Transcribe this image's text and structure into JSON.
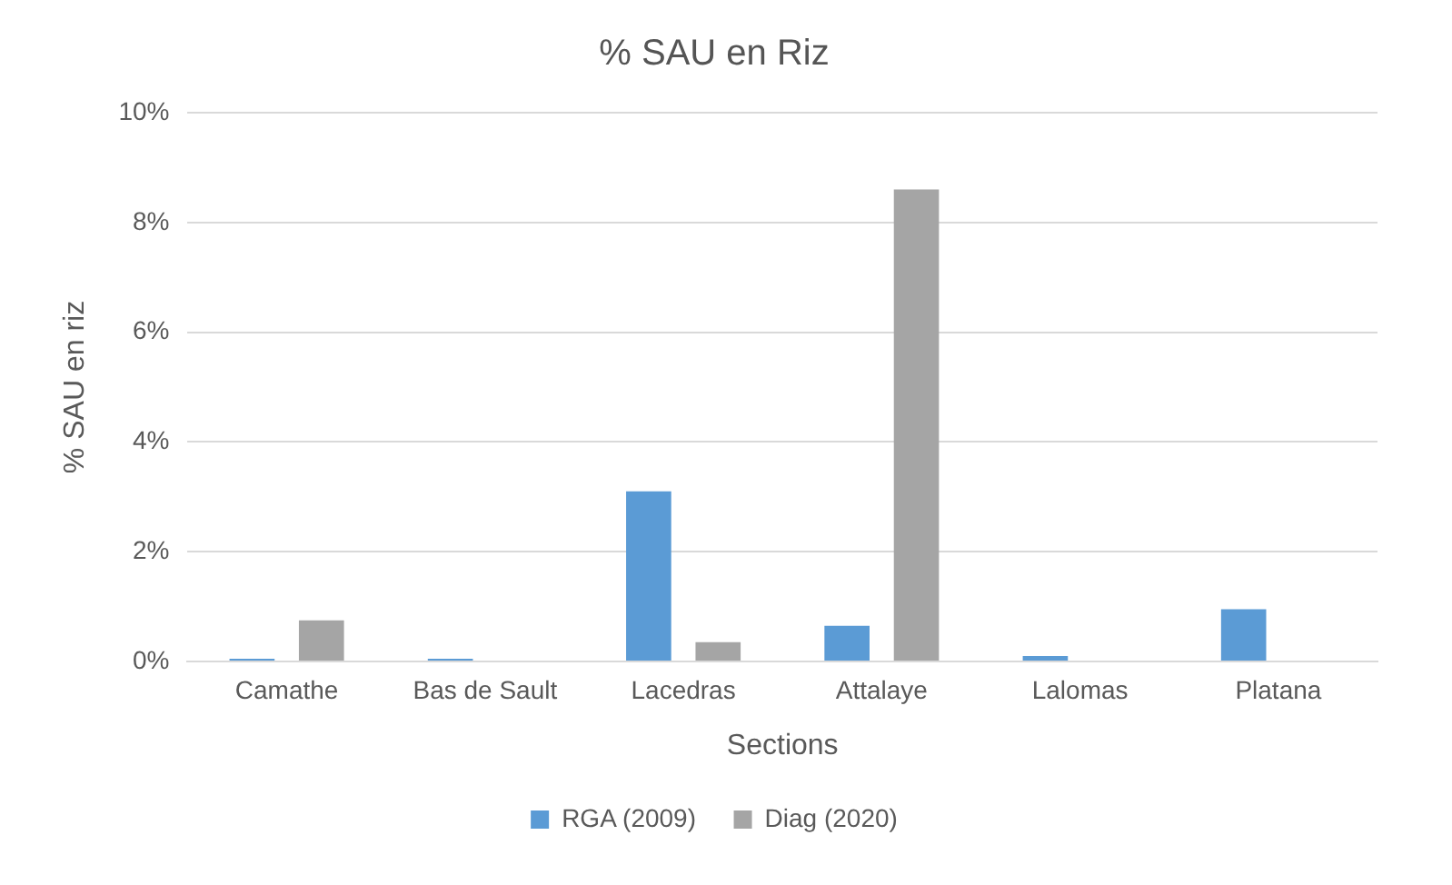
{
  "chart_data": {
    "type": "bar",
    "title": "% SAU en Riz",
    "xlabel": "Sections",
    "ylabel": "% SAU en riz",
    "categories": [
      "Camathe",
      "Bas de Sault",
      "Lacedras",
      "Attalaye",
      "Lalomas",
      "Platana"
    ],
    "series": [
      {
        "name": "RGA (2009)",
        "color": "#5b9bd5",
        "values": [
          0.05,
          0.05,
          3.1,
          0.65,
          0.1,
          0.95
        ]
      },
      {
        "name": "Diag (2020)",
        "color": "#a5a5a5",
        "values": [
          0.75,
          0,
          0.35,
          8.6,
          0,
          0
        ]
      }
    ],
    "ylim": [
      0,
      10
    ],
    "yticks": [
      {
        "value": 0,
        "label": "0%"
      },
      {
        "value": 2,
        "label": "2%"
      },
      {
        "value": 4,
        "label": "4%"
      },
      {
        "value": 6,
        "label": "6%"
      },
      {
        "value": 8,
        "label": "8%"
      },
      {
        "value": 10,
        "label": "10%"
      }
    ],
    "grid": "y",
    "legend": "bottom"
  }
}
